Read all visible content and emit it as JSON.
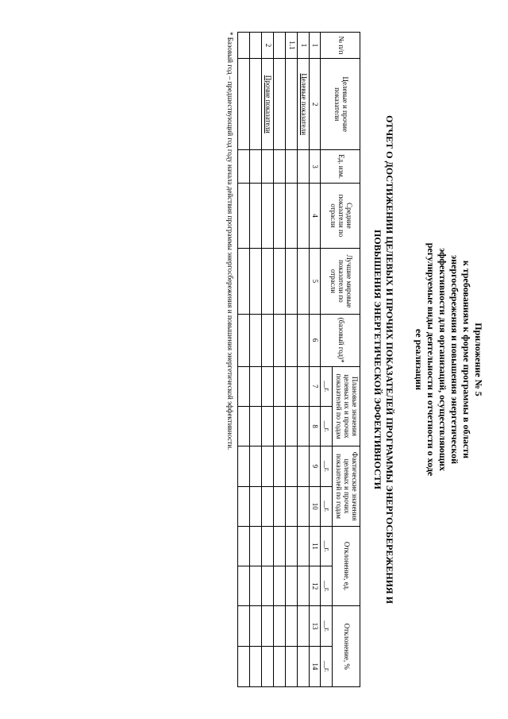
{
  "appendix": {
    "line1": "Приложение № 5",
    "line2": "к требованиям к форме программы в области",
    "line3": "энергосбережения и повышения энергетической",
    "line4": "эффективности для организаций, осуществляющих",
    "line5": "регулируемые виды деятельности и отчетности о ходе",
    "line6": "ее реализации"
  },
  "title": {
    "line1": "ОТЧЕТ О ДОСТИЖЕНИИ ЦЕЛЕВЫХ И ПРОЧИХ ПОКАЗАТЕЛЕЙ ПРОГРАММЫ ЭНЕРГОСБЕРЕЖЕНИЯ И",
    "line2": "ПОВЫШЕНИЯ ЭНЕРГЕТИЧЕСКОЙ ЭФФЕКТИВНОСТИ"
  },
  "headers": {
    "npp": "№ п/п",
    "indicators": "Целевые и прочие показатели",
    "unit": "Ед. изм.",
    "avg": "Средние показатели по отрасли",
    "best": "Лучшие мировые показатели по отрасли",
    "base": "(базовый год)*",
    "plan": "Плановые значения целевых их и прочих показателей по годам",
    "fact": "Фактические значения целевых и прочих показателей по годам",
    "dev_unit": "Отклонение, ед.",
    "dev_pct": "Отклонение, %",
    "year": "__г."
  },
  "cols": {
    "c1": "1",
    "c2": "2",
    "c3": "3",
    "c4": "4",
    "c5": "5",
    "c6": "6",
    "c7": "7",
    "c8": "8",
    "c9": "9",
    "c10": "10",
    "c11": "11",
    "c12": "12",
    "c13": "13",
    "c14": "14"
  },
  "rows": {
    "r1_num": "1",
    "r1_label": "Целевые показатели",
    "r11_num": "1.1",
    "r2_num": "2",
    "r2_label": "Прочие показатели"
  },
  "footnote": "* Базовый год – предшествующий год году начала действия программы энергосбережения и повышения энергетической эффективности."
}
